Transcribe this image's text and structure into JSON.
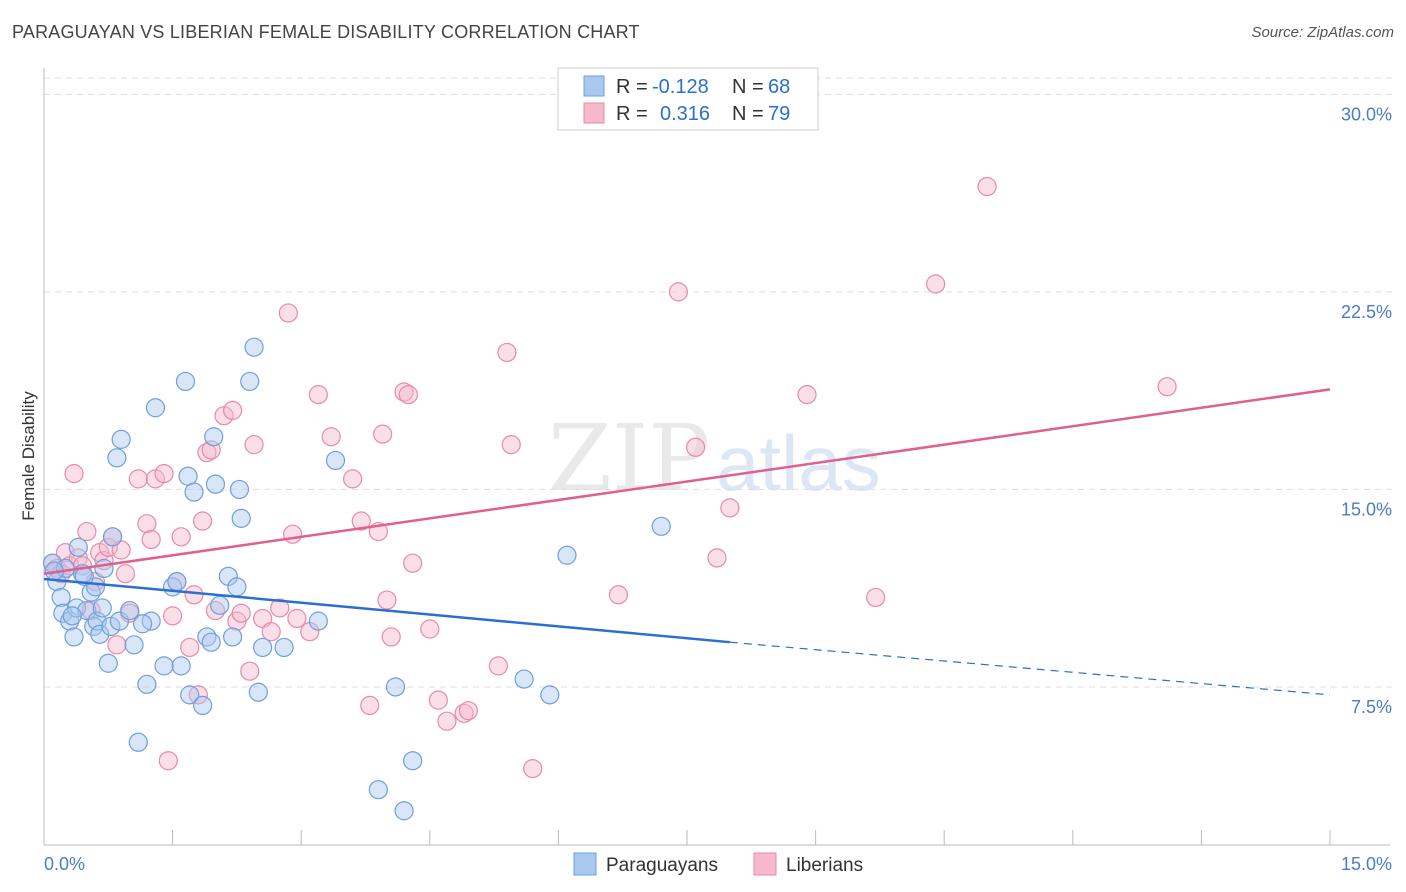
{
  "title": "PARAGUAYAN VS LIBERIAN FEMALE DISABILITY CORRELATION CHART",
  "source": "Source: ZipAtlas.com",
  "watermark": {
    "zip": "ZIP",
    "atlas": "atlas"
  },
  "colors": {
    "paraguayans_fill": "#a9c8f0",
    "paraguayans_stroke": "#6f9fdc",
    "paraguayans_line": "#2b6fd1",
    "liberians_fill": "#f6b8cb",
    "liberians_stroke": "#e88aa8",
    "liberians_line": "#e05f8c",
    "tick_text": "#4a7cc7"
  },
  "legend": {
    "r_label": "R =",
    "n_label": "N =",
    "rows": [
      {
        "r_value": "-0.128",
        "n_value": "68"
      },
      {
        "r_value": "0.316",
        "n_value": "79"
      }
    ]
  },
  "chart_data": {
    "type": "scatter",
    "title": "PARAGUAYAN VS LIBERIAN FEMALE DISABILITY CORRELATION CHART",
    "xlabel": "",
    "ylabel": "Female Disability",
    "xlim": [
      0,
      15
    ],
    "ylim": [
      1.5,
      31.0
    ],
    "x_tick_labels": [
      "0.0%",
      "15.0%"
    ],
    "y_ticks": [
      7.5,
      15.0,
      22.5,
      30.0
    ],
    "y_tick_labels": [
      "7.5%",
      "15.0%",
      "22.5%",
      "30.0%"
    ],
    "grid": true,
    "legend_position": "top-center",
    "series": [
      {
        "name": "Paraguayans",
        "r": -0.128,
        "n": 68,
        "trend": {
          "x_start": 0,
          "y_start": 11.6,
          "x_solid_end": 8.0,
          "y_solid_end": 9.2,
          "x_end": 15.0,
          "y_end": 7.2
        },
        "points": [
          [
            0.1,
            12.2
          ],
          [
            0.15,
            11.5
          ],
          [
            0.2,
            10.9
          ],
          [
            0.22,
            10.3
          ],
          [
            0.25,
            12.0
          ],
          [
            0.3,
            10.0
          ],
          [
            0.35,
            9.4
          ],
          [
            0.38,
            10.5
          ],
          [
            0.4,
            12.8
          ],
          [
            0.45,
            11.8
          ],
          [
            0.5,
            10.4
          ],
          [
            0.55,
            11.1
          ],
          [
            0.58,
            9.8
          ],
          [
            0.6,
            11.3
          ],
          [
            0.62,
            10.0
          ],
          [
            0.65,
            9.5
          ],
          [
            0.68,
            10.5
          ],
          [
            0.7,
            12.0
          ],
          [
            0.75,
            8.4
          ],
          [
            0.78,
            9.8
          ],
          [
            0.8,
            13.2
          ],
          [
            0.85,
            16.2
          ],
          [
            0.88,
            10.0
          ],
          [
            0.9,
            16.9
          ],
          [
            1.0,
            10.4
          ],
          [
            1.05,
            9.1
          ],
          [
            1.1,
            5.4
          ],
          [
            1.2,
            7.6
          ],
          [
            1.25,
            10.0
          ],
          [
            1.3,
            18.1
          ],
          [
            1.5,
            11.3
          ],
          [
            1.55,
            11.5
          ],
          [
            1.6,
            8.3
          ],
          [
            1.65,
            19.1
          ],
          [
            1.68,
            15.5
          ],
          [
            1.7,
            7.2
          ],
          [
            1.75,
            14.9
          ],
          [
            1.85,
            6.8
          ],
          [
            1.9,
            9.4
          ],
          [
            1.95,
            9.2
          ],
          [
            1.98,
            17.0
          ],
          [
            2.0,
            15.2
          ],
          [
            2.05,
            10.6
          ],
          [
            2.15,
            11.7
          ],
          [
            2.2,
            9.4
          ],
          [
            2.25,
            11.3
          ],
          [
            2.28,
            15.0
          ],
          [
            2.3,
            13.9
          ],
          [
            2.4,
            19.1
          ],
          [
            2.45,
            20.4
          ],
          [
            2.5,
            7.3
          ],
          [
            2.55,
            9.0
          ],
          [
            2.8,
            9.0
          ],
          [
            3.2,
            10.0
          ],
          [
            3.4,
            16.1
          ],
          [
            3.9,
            3.6
          ],
          [
            4.1,
            7.5
          ],
          [
            4.2,
            2.8
          ],
          [
            4.3,
            4.7
          ],
          [
            5.6,
            7.8
          ],
          [
            5.9,
            7.2
          ],
          [
            6.1,
            12.5
          ],
          [
            7.2,
            13.6
          ],
          [
            0.12,
            11.9
          ],
          [
            0.33,
            10.2
          ],
          [
            0.47,
            11.7
          ],
          [
            1.4,
            8.3
          ],
          [
            1.15,
            9.9
          ]
        ]
      },
      {
        "name": "Liberians",
        "r": 0.316,
        "n": 79,
        "trend": {
          "x_start": 0,
          "y_start": 11.8,
          "x_end": 15.0,
          "y_end": 18.8
        },
        "points": [
          [
            0.1,
            12.2
          ],
          [
            0.15,
            12.0
          ],
          [
            0.2,
            11.8
          ],
          [
            0.25,
            12.6
          ],
          [
            0.3,
            12.1
          ],
          [
            0.35,
            15.6
          ],
          [
            0.4,
            12.4
          ],
          [
            0.45,
            12.1
          ],
          [
            0.5,
            13.4
          ],
          [
            0.55,
            10.4
          ],
          [
            0.6,
            11.5
          ],
          [
            0.65,
            12.6
          ],
          [
            0.7,
            12.3
          ],
          [
            0.75,
            12.8
          ],
          [
            0.8,
            13.2
          ],
          [
            0.85,
            9.1
          ],
          [
            0.9,
            12.7
          ],
          [
            0.95,
            11.8
          ],
          [
            1.0,
            10.3
          ],
          [
            1.1,
            15.4
          ],
          [
            1.2,
            13.7
          ],
          [
            1.25,
            13.1
          ],
          [
            1.3,
            15.4
          ],
          [
            1.4,
            15.6
          ],
          [
            1.45,
            4.7
          ],
          [
            1.5,
            10.2
          ],
          [
            1.55,
            11.5
          ],
          [
            1.6,
            13.2
          ],
          [
            1.7,
            9.0
          ],
          [
            1.75,
            11.0
          ],
          [
            1.8,
            7.2
          ],
          [
            1.85,
            13.8
          ],
          [
            1.9,
            16.4
          ],
          [
            1.95,
            16.5
          ],
          [
            2.0,
            10.4
          ],
          [
            2.1,
            17.8
          ],
          [
            2.2,
            18.0
          ],
          [
            2.25,
            10.0
          ],
          [
            2.3,
            10.3
          ],
          [
            2.4,
            8.1
          ],
          [
            2.45,
            16.7
          ],
          [
            2.55,
            10.1
          ],
          [
            2.65,
            9.6
          ],
          [
            2.75,
            10.5
          ],
          [
            2.85,
            21.7
          ],
          [
            2.9,
            13.3
          ],
          [
            2.95,
            10.1
          ],
          [
            3.1,
            9.6
          ],
          [
            3.2,
            18.6
          ],
          [
            3.35,
            17.0
          ],
          [
            3.6,
            15.4
          ],
          [
            3.7,
            13.8
          ],
          [
            3.8,
            6.8
          ],
          [
            3.9,
            13.4
          ],
          [
            3.95,
            17.1
          ],
          [
            4.0,
            10.8
          ],
          [
            4.05,
            9.4
          ],
          [
            4.2,
            18.7
          ],
          [
            4.25,
            18.6
          ],
          [
            4.3,
            12.2
          ],
          [
            4.5,
            9.7
          ],
          [
            4.6,
            7.0
          ],
          [
            4.7,
            6.2
          ],
          [
            4.9,
            6.5
          ],
          [
            4.95,
            6.6
          ],
          [
            5.3,
            8.3
          ],
          [
            5.4,
            20.2
          ],
          [
            5.45,
            16.7
          ],
          [
            5.7,
            4.4
          ],
          [
            6.7,
            11.0
          ],
          [
            7.4,
            22.5
          ],
          [
            7.6,
            16.6
          ],
          [
            7.85,
            12.4
          ],
          [
            8.0,
            14.3
          ],
          [
            8.9,
            18.6
          ],
          [
            9.7,
            10.9
          ],
          [
            10.4,
            22.8
          ],
          [
            11.0,
            26.5
          ],
          [
            13.1,
            18.9
          ]
        ]
      }
    ]
  },
  "bottom_legend": [
    "Paraguayans",
    "Liberians"
  ]
}
